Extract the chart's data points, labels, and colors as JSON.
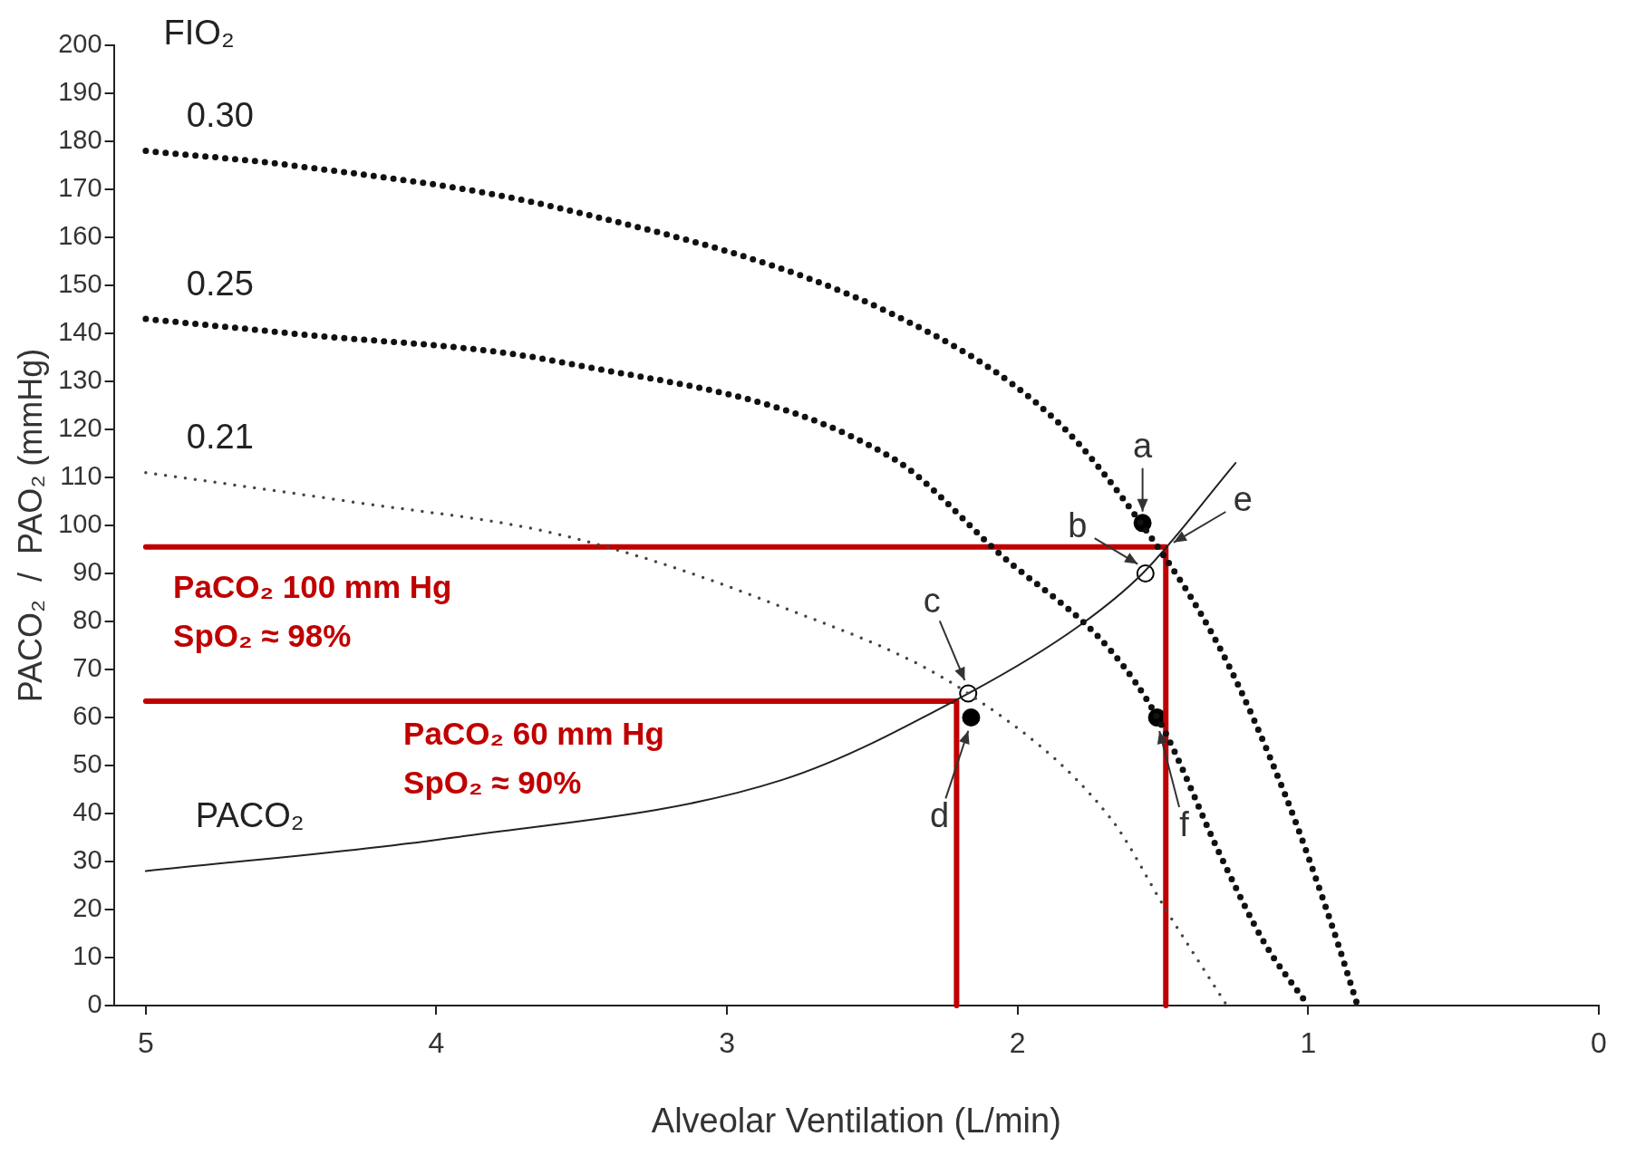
{
  "chart_data": {
    "type": "line",
    "xlabel": "Alveolar Ventilation (L/min)",
    "ylabel": "PACO₂  /  PAO₂ (mmHg)",
    "legend_title": "FIO₂",
    "xlim": [
      5.11,
      0
    ],
    "xticks": [
      5,
      4,
      3,
      2,
      1,
      0
    ],
    "ylim": [
      0,
      200
    ],
    "yticks": [
      0,
      10,
      20,
      30,
      40,
      50,
      60,
      70,
      80,
      90,
      100,
      110,
      120,
      130,
      140,
      150,
      160,
      170,
      180,
      190,
      200
    ],
    "grid": false,
    "legend": false,
    "series": [
      {
        "name": "0.30",
        "color": "#111111",
        "line_style": "dotted",
        "x": [
          5,
          4.5,
          3.57,
          2.43,
          1.87,
          1.57,
          1.3,
          1.08,
          0.92,
          0.83
        ],
        "values": [
          178,
          175,
          166,
          144,
          122,
          100,
          74,
          44,
          17,
          0
        ]
      },
      {
        "name": "0.25",
        "color": "#111111",
        "line_style": "dotted",
        "x": [
          5,
          4.5,
          3.57,
          2.43,
          2.06,
          1.68,
          1.51,
          1.3,
          1.15,
          1.0
        ],
        "values": [
          143,
          140,
          134,
          114,
          94,
          74,
          59,
          31,
          13,
          0
        ]
      },
      {
        "name": "0.21",
        "color": "#444444",
        "line_style": "dotted",
        "x": [
          5,
          4.3,
          3.57,
          2.81,
          2.17,
          1.68,
          1.49,
          1.28
        ],
        "values": [
          111,
          105,
          98,
          83,
          65,
          39,
          20,
          0
        ]
      },
      {
        "name": "PACO₂",
        "color": "#222222",
        "line_style": "solid",
        "x": [
          5,
          3.94,
          2.81,
          2.17,
          1.79,
          1.57,
          1.25
        ],
        "values": [
          28,
          35,
          47,
          65,
          79,
          90,
          113
        ]
      },
      {
        "color": "#c00000",
        "line_style": "solid",
        "x": [
          5,
          1.49,
          1.49
        ],
        "values": [
          95.5,
          95.5,
          0
        ]
      },
      {
        "color": "#c00000",
        "line_style": "solid",
        "x": [
          5,
          2.21,
          2.21
        ],
        "values": [
          63.4,
          63.4,
          0
        ]
      },
      {
        "type": "scatter",
        "marker": "circle",
        "color": "#000000",
        "x": [
          1.57,
          2.16,
          1.52
        ],
        "values": [
          100.5,
          60,
          60
        ]
      },
      {
        "type": "scatter",
        "marker": "circle",
        "color": "#ffffff",
        "x": [
          1.56,
          2.17
        ],
        "values": [
          90,
          65
        ]
      }
    ],
    "annotations": [
      {
        "text": "a",
        "x": 1.57,
        "y": 101
      },
      {
        "text": "b",
        "x": 1.56,
        "y": 91
      },
      {
        "text": "e",
        "x": 1.49,
        "y": 95.5
      },
      {
        "text": "c",
        "x": 2.17,
        "y": 66
      },
      {
        "text": "d",
        "x": 2.16,
        "y": 59
      },
      {
        "text": "f",
        "x": 1.52,
        "y": 59
      },
      "PaCO₂ 100 mm Hg\nSpO₂ ≈ 98%",
      "PaCO₂ 60 mm Hg\nSpO₂ ≈ 90%"
    ]
  }
}
